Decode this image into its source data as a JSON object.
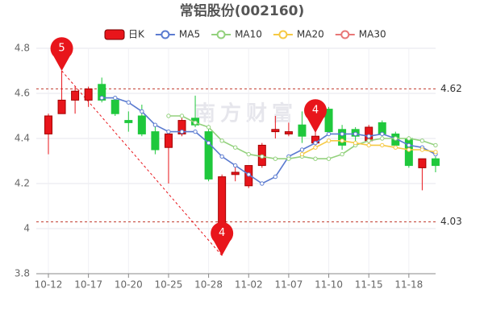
{
  "chart_data": {
    "type": "candlestick",
    "title": "常铝股份(002160)",
    "watermark": "南方财富",
    "categories": [
      "10-12",
      null,
      null,
      "10-17",
      null,
      null,
      "10-20",
      null,
      null,
      "10-25",
      null,
      null,
      "10-28",
      null,
      null,
      "11-02",
      null,
      null,
      "11-07",
      null,
      null,
      "11-10",
      null,
      null,
      "11-15",
      null,
      null,
      "11-18",
      null,
      null
    ],
    "ylim": [
      3.8,
      4.8
    ],
    "yticks": [
      3.8,
      4,
      4.2,
      4.4,
      4.6,
      4.8
    ],
    "grid": true,
    "up_color": "#e8151b",
    "down_color": "#1fc83c",
    "hlines": [
      4.62,
      4.03
    ],
    "annotations": [
      "5",
      "4",
      "4"
    ],
    "candles": {
      "name": "日K",
      "open": [
        4.42,
        4.51,
        4.57,
        4.57,
        4.64,
        4.57,
        4.48,
        4.5,
        4.43,
        4.36,
        4.42,
        4.49,
        4.43,
        4.01,
        4.24,
        4.19,
        4.28,
        4.43,
        4.42,
        4.46,
        4.38,
        4.53,
        4.44,
        4.44,
        4.39,
        4.47,
        4.42,
        4.4,
        4.27,
        4.31
      ],
      "high": [
        4.51,
        4.7,
        4.63,
        4.63,
        4.67,
        4.58,
        4.52,
        4.55,
        4.46,
        4.43,
        4.5,
        4.59,
        4.46,
        4.24,
        4.28,
        4.28,
        4.38,
        4.5,
        4.47,
        4.52,
        4.45,
        4.54,
        4.46,
        4.45,
        4.46,
        4.48,
        4.43,
        4.41,
        4.31,
        4.32
      ],
      "low": [
        4.33,
        4.51,
        4.51,
        4.54,
        4.56,
        4.5,
        4.43,
        4.41,
        4.33,
        4.2,
        4.41,
        4.45,
        4.21,
        3.88,
        4.21,
        4.18,
        4.27,
        4.4,
        4.41,
        4.38,
        4.36,
        4.42,
        4.35,
        4.38,
        4.37,
        4.41,
        4.36,
        4.27,
        4.17,
        4.25
      ],
      "close": [
        4.5,
        4.57,
        4.61,
        4.62,
        4.57,
        4.51,
        4.47,
        4.42,
        4.35,
        4.42,
        4.48,
        4.46,
        4.22,
        4.23,
        4.25,
        4.28,
        4.37,
        4.44,
        4.43,
        4.41,
        4.41,
        4.43,
        4.37,
        4.41,
        4.45,
        4.42,
        4.37,
        4.28,
        4.31,
        4.28
      ]
    },
    "series": [
      {
        "name": "MA5",
        "color": "#5b7bd0",
        "values": [
          null,
          null,
          null,
          null,
          4.58,
          4.58,
          4.56,
          4.52,
          4.46,
          4.43,
          4.43,
          4.43,
          4.38,
          4.32,
          4.28,
          4.24,
          4.2,
          4.23,
          4.32,
          4.35,
          4.38,
          4.42,
          4.42,
          4.42,
          4.41,
          4.42,
          4.4,
          4.37,
          4.36,
          4.33
        ]
      },
      {
        "name": "MA10",
        "color": "#93d17d",
        "values": [
          null,
          null,
          null,
          null,
          null,
          null,
          null,
          null,
          null,
          4.5,
          4.5,
          4.47,
          4.45,
          4.39,
          4.36,
          4.33,
          4.32,
          4.31,
          4.31,
          4.32,
          4.31,
          4.31,
          4.33,
          4.37,
          4.39,
          4.4,
          4.4,
          4.4,
          4.39,
          4.37
        ]
      },
      {
        "name": "MA20",
        "color": "#f6c944",
        "values": [
          null,
          null,
          null,
          null,
          null,
          null,
          null,
          null,
          null,
          null,
          null,
          null,
          null,
          null,
          null,
          null,
          null,
          null,
          null,
          4.33,
          4.36,
          4.39,
          4.39,
          4.38,
          4.37,
          4.37,
          4.36,
          4.35,
          4.35,
          4.34
        ]
      },
      {
        "name": "MA30",
        "color": "#e87777",
        "values": [
          null,
          null,
          null,
          null,
          null,
          null,
          null,
          null,
          null,
          null,
          null,
          null,
          null,
          null,
          null,
          null,
          null,
          null,
          null,
          null,
          null,
          null,
          null,
          null,
          null,
          null,
          null,
          null,
          null,
          null
        ]
      }
    ]
  }
}
